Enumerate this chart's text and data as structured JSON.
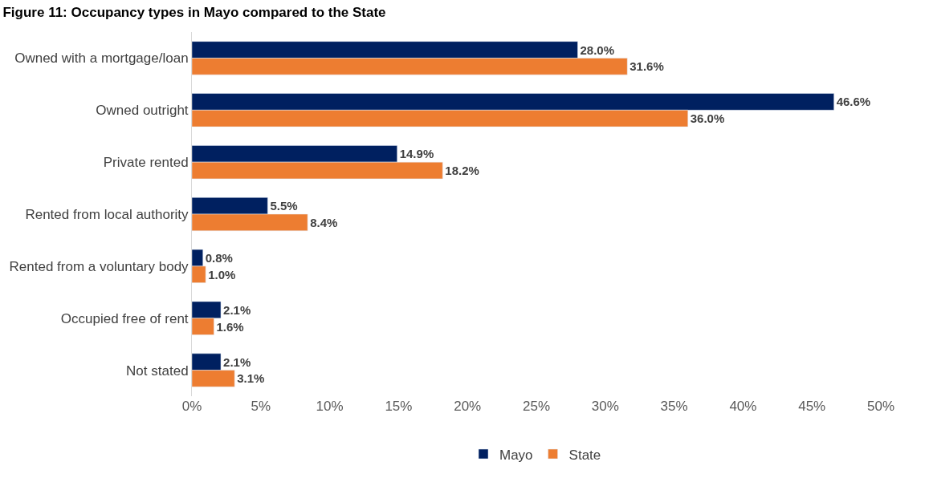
{
  "chart_data": {
    "type": "bar",
    "orientation": "horizontal",
    "title": "Figure 11: Occupancy types in Mayo compared to the State",
    "categories": [
      "Owned with a mortgage/loan",
      "Owned outright",
      "Private rented",
      "Rented from local authority",
      "Rented from a voluntary body",
      "Occupied free of rent",
      "Not stated"
    ],
    "series": [
      {
        "name": "Mayo",
        "color": "#002060",
        "values": [
          28.0,
          46.6,
          14.9,
          5.5,
          0.8,
          2.1,
          2.1
        ],
        "value_labels": [
          "28.0%",
          "46.6%",
          "14.9%",
          "5.5%",
          "0.8%",
          "2.1%",
          "2.1%"
        ]
      },
      {
        "name": "State",
        "color": "#ed7d31",
        "values": [
          31.6,
          36.0,
          18.2,
          8.4,
          1.0,
          1.6,
          3.1
        ],
        "value_labels": [
          "31.6%",
          "36.0%",
          "18.2%",
          "8.4%",
          "1.0%",
          "1.6%",
          "3.1%"
        ]
      }
    ],
    "xlim": [
      0,
      50
    ],
    "xticks": [
      {
        "value": 0,
        "label": "0%"
      },
      {
        "value": 5,
        "label": "5%"
      },
      {
        "value": 10,
        "label": "10%"
      },
      {
        "value": 15,
        "label": "15%"
      },
      {
        "value": 20,
        "label": "20%"
      },
      {
        "value": 25,
        "label": "25%"
      },
      {
        "value": 30,
        "label": "30%"
      },
      {
        "value": 35,
        "label": "35%"
      },
      {
        "value": 40,
        "label": "40%"
      },
      {
        "value": 45,
        "label": "45%"
      },
      {
        "value": 50,
        "label": "50%"
      }
    ],
    "legend": "bottom"
  }
}
